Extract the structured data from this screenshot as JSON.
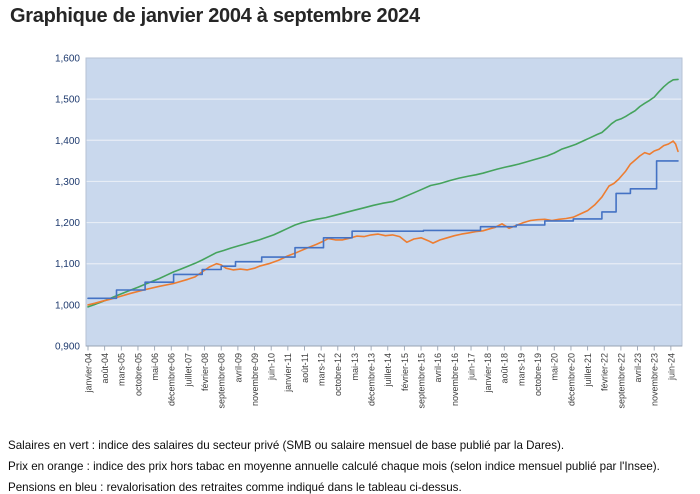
{
  "title": "Graphique de janvier 2004 à septembre 2024",
  "footer": {
    "lines": [
      "Salaires en vert : indice des salaires du secteur privé (SMB ou salaire mensuel de base publié par la Dares).",
      "Prix en orange : indice des prix hors tabac en moyenne annuelle calculé chaque mois (selon indice mensuel publié par l'Insee).",
      "Pensions en bleu : revalorisation des retraites comme indiqué dans le tableau ci-dessus."
    ]
  },
  "colors": {
    "plot_background": "#c9d8ed",
    "gridline": "#e7edf6",
    "plot_border": "#b6c2d4",
    "axis_line": "#98a3b3",
    "y_label": "#1e3a6e",
    "x_label": "#3d3d3d",
    "salaires_green": "#45a35d",
    "prix_orange": "#ed7d31",
    "pensions_blue": "#4472c4"
  },
  "chart_data": {
    "type": "line",
    "title": "Graphique de janvier 2004 à septembre 2024",
    "x_unit": "mois depuis janvier 2004 (0 = janvier-04, 248 = septembre-24)",
    "x_range": [
      0,
      248
    ],
    "y_range": [
      900,
      1600
    ],
    "grid": "horizontal only",
    "legend_position": "none (series described in footer notes)",
    "y_ticks": [
      {
        "value": 900,
        "label": "0,900"
      },
      {
        "value": 1000,
        "label": "1,000"
      },
      {
        "value": 1100,
        "label": "1,100"
      },
      {
        "value": 1200,
        "label": "1,200"
      },
      {
        "value": 1300,
        "label": "1,300"
      },
      {
        "value": 1400,
        "label": "1,400"
      },
      {
        "value": 1500,
        "label": "1,500"
      },
      {
        "value": 1600,
        "label": "1,600"
      }
    ],
    "x_ticks": [
      {
        "month": 0,
        "label": "janvier-04"
      },
      {
        "month": 7,
        "label": "août-04"
      },
      {
        "month": 14,
        "label": "mars-05"
      },
      {
        "month": 21,
        "label": "octobre-05"
      },
      {
        "month": 28,
        "label": "mai-06"
      },
      {
        "month": 35,
        "label": "décembre-06"
      },
      {
        "month": 42,
        "label": "juillet-07"
      },
      {
        "month": 49,
        "label": "février-08"
      },
      {
        "month": 56,
        "label": "septembre-08"
      },
      {
        "month": 63,
        "label": "avril-09"
      },
      {
        "month": 70,
        "label": "novembre-09"
      },
      {
        "month": 77,
        "label": "juin-10"
      },
      {
        "month": 84,
        "label": "janvier-11"
      },
      {
        "month": 91,
        "label": "août-11"
      },
      {
        "month": 98,
        "label": "mars-12"
      },
      {
        "month": 105,
        "label": "octobre-12"
      },
      {
        "month": 112,
        "label": "mai-13"
      },
      {
        "month": 119,
        "label": "décembre-13"
      },
      {
        "month": 126,
        "label": "juillet-14"
      },
      {
        "month": 133,
        "label": "février-15"
      },
      {
        "month": 140,
        "label": "septembre-15"
      },
      {
        "month": 147,
        "label": "avril-16"
      },
      {
        "month": 154,
        "label": "novembre-16"
      },
      {
        "month": 161,
        "label": "juin-17"
      },
      {
        "month": 168,
        "label": "janvier-18"
      },
      {
        "month": 175,
        "label": "août-18"
      },
      {
        "month": 182,
        "label": "mars-19"
      },
      {
        "month": 189,
        "label": "octobre-19"
      },
      {
        "month": 196,
        "label": "mai-20"
      },
      {
        "month": 203,
        "label": "décembre-20"
      },
      {
        "month": 210,
        "label": "juillet-21"
      },
      {
        "month": 217,
        "label": "février-22"
      },
      {
        "month": 224,
        "label": "septembre-22"
      },
      {
        "month": 231,
        "label": "avril-23"
      },
      {
        "month": 238,
        "label": "novembre-23"
      },
      {
        "month": 245,
        "label": "juin-24"
      }
    ],
    "series": [
      {
        "name": "Salaires (indice SMB, vert)",
        "color": "#45a35d",
        "points": [
          [
            0,
            995
          ],
          [
            3,
            1001
          ],
          [
            6,
            1008
          ],
          [
            9,
            1015
          ],
          [
            12,
            1022
          ],
          [
            15,
            1029
          ],
          [
            18,
            1036
          ],
          [
            21,
            1043
          ],
          [
            24,
            1050
          ],
          [
            27,
            1057
          ],
          [
            30,
            1064
          ],
          [
            33,
            1072
          ],
          [
            36,
            1080
          ],
          [
            39,
            1087
          ],
          [
            42,
            1094
          ],
          [
            45,
            1101
          ],
          [
            48,
            1109
          ],
          [
            51,
            1118
          ],
          [
            54,
            1127
          ],
          [
            57,
            1132
          ],
          [
            60,
            1138
          ],
          [
            63,
            1143
          ],
          [
            66,
            1148
          ],
          [
            69,
            1153
          ],
          [
            72,
            1158
          ],
          [
            75,
            1164
          ],
          [
            78,
            1170
          ],
          [
            81,
            1178
          ],
          [
            84,
            1186
          ],
          [
            87,
            1194
          ],
          [
            90,
            1200
          ],
          [
            93,
            1204
          ],
          [
            96,
            1208
          ],
          [
            100,
            1212
          ],
          [
            104,
            1218
          ],
          [
            108,
            1224
          ],
          [
            112,
            1230
          ],
          [
            116,
            1236
          ],
          [
            120,
            1242
          ],
          [
            124,
            1247
          ],
          [
            128,
            1251
          ],
          [
            132,
            1260
          ],
          [
            136,
            1270
          ],
          [
            140,
            1280
          ],
          [
            144,
            1290
          ],
          [
            148,
            1295
          ],
          [
            152,
            1302
          ],
          [
            156,
            1308
          ],
          [
            160,
            1313
          ],
          [
            163,
            1316
          ],
          [
            166,
            1320
          ],
          [
            169,
            1325
          ],
          [
            172,
            1330
          ],
          [
            175,
            1334
          ],
          [
            178,
            1338
          ],
          [
            181,
            1342
          ],
          [
            184,
            1347
          ],
          [
            187,
            1352
          ],
          [
            190,
            1357
          ],
          [
            193,
            1362
          ],
          [
            196,
            1369
          ],
          [
            199,
            1378
          ],
          [
            202,
            1384
          ],
          [
            205,
            1390
          ],
          [
            208,
            1398
          ],
          [
            211,
            1406
          ],
          [
            214,
            1414
          ],
          [
            216,
            1419
          ],
          [
            218,
            1429
          ],
          [
            220,
            1440
          ],
          [
            222,
            1448
          ],
          [
            224,
            1452
          ],
          [
            226,
            1458
          ],
          [
            228,
            1465
          ],
          [
            230,
            1472
          ],
          [
            232,
            1482
          ],
          [
            234,
            1490
          ],
          [
            236,
            1497
          ],
          [
            238,
            1505
          ],
          [
            240,
            1518
          ],
          [
            242,
            1530
          ],
          [
            244,
            1540
          ],
          [
            246,
            1547
          ],
          [
            248,
            1548
          ]
        ]
      },
      {
        "name": "Prix hors tabac (orange)",
        "color": "#ed7d31",
        "points": [
          [
            0,
            1000
          ],
          [
            3,
            1004
          ],
          [
            6,
            1009
          ],
          [
            9,
            1013
          ],
          [
            12,
            1018
          ],
          [
            18,
            1028
          ],
          [
            24,
            1037
          ],
          [
            30,
            1045
          ],
          [
            36,
            1052
          ],
          [
            42,
            1062
          ],
          [
            45,
            1068
          ],
          [
            48,
            1080
          ],
          [
            51,
            1092
          ],
          [
            54,
            1100
          ],
          [
            56,
            1097
          ],
          [
            58,
            1089
          ],
          [
            61,
            1085
          ],
          [
            64,
            1087
          ],
          [
            67,
            1085
          ],
          [
            70,
            1089
          ],
          [
            72,
            1094
          ],
          [
            76,
            1100
          ],
          [
            80,
            1108
          ],
          [
            84,
            1119
          ],
          [
            88,
            1128
          ],
          [
            92,
            1138
          ],
          [
            96,
            1147
          ],
          [
            99,
            1155
          ],
          [
            101,
            1161
          ],
          [
            104,
            1158
          ],
          [
            107,
            1158
          ],
          [
            110,
            1162
          ],
          [
            113,
            1167
          ],
          [
            116,
            1166
          ],
          [
            119,
            1170
          ],
          [
            122,
            1172
          ],
          [
            125,
            1168
          ],
          [
            128,
            1170
          ],
          [
            131,
            1166
          ],
          [
            134,
            1152
          ],
          [
            137,
            1160
          ],
          [
            140,
            1163
          ],
          [
            143,
            1156
          ],
          [
            145,
            1150
          ],
          [
            148,
            1158
          ],
          [
            151,
            1163
          ],
          [
            154,
            1168
          ],
          [
            157,
            1172
          ],
          [
            160,
            1175
          ],
          [
            163,
            1178
          ],
          [
            166,
            1180
          ],
          [
            169,
            1185
          ],
          [
            171,
            1188
          ],
          [
            174,
            1197
          ],
          [
            177,
            1186
          ],
          [
            180,
            1193
          ],
          [
            183,
            1200
          ],
          [
            186,
            1205
          ],
          [
            189,
            1207
          ],
          [
            192,
            1208
          ],
          [
            195,
            1205
          ],
          [
            198,
            1208
          ],
          [
            201,
            1210
          ],
          [
            204,
            1213
          ],
          [
            207,
            1221
          ],
          [
            210,
            1229
          ],
          [
            213,
            1243
          ],
          [
            216,
            1262
          ],
          [
            219,
            1289
          ],
          [
            221,
            1295
          ],
          [
            223,
            1305
          ],
          [
            226,
            1325
          ],
          [
            228,
            1342
          ],
          [
            230,
            1352
          ],
          [
            232,
            1362
          ],
          [
            234,
            1370
          ],
          [
            236,
            1366
          ],
          [
            238,
            1374
          ],
          [
            240,
            1378
          ],
          [
            242,
            1387
          ],
          [
            244,
            1391
          ],
          [
            246,
            1398
          ],
          [
            247,
            1391
          ],
          [
            248,
            1373
          ]
        ]
      },
      {
        "name": "Pensions revalorisées (bleu)",
        "color": "#4472c4",
        "points": [
          [
            0,
            1016
          ],
          [
            12,
            1016
          ],
          [
            12,
            1036
          ],
          [
            24,
            1036
          ],
          [
            24,
            1055
          ],
          [
            36,
            1055
          ],
          [
            36,
            1074
          ],
          [
            48,
            1074
          ],
          [
            48,
            1086
          ],
          [
            56,
            1086
          ],
          [
            56,
            1094
          ],
          [
            62,
            1094
          ],
          [
            62,
            1105
          ],
          [
            73,
            1105
          ],
          [
            73,
            1116
          ],
          [
            87,
            1116
          ],
          [
            87,
            1139
          ],
          [
            99,
            1139
          ],
          [
            99,
            1163
          ],
          [
            111,
            1163
          ],
          [
            111,
            1179
          ],
          [
            141,
            1179
          ],
          [
            141,
            1181
          ],
          [
            165,
            1181
          ],
          [
            165,
            1190
          ],
          [
            180,
            1190
          ],
          [
            180,
            1194
          ],
          [
            192,
            1194
          ],
          [
            192,
            1204
          ],
          [
            204,
            1204
          ],
          [
            204,
            1209
          ],
          [
            216,
            1209
          ],
          [
            216,
            1226
          ],
          [
            222,
            1226
          ],
          [
            222,
            1271
          ],
          [
            228,
            1271
          ],
          [
            228,
            1282
          ],
          [
            239,
            1282
          ],
          [
            239,
            1350
          ],
          [
            248,
            1350
          ]
        ]
      }
    ]
  }
}
